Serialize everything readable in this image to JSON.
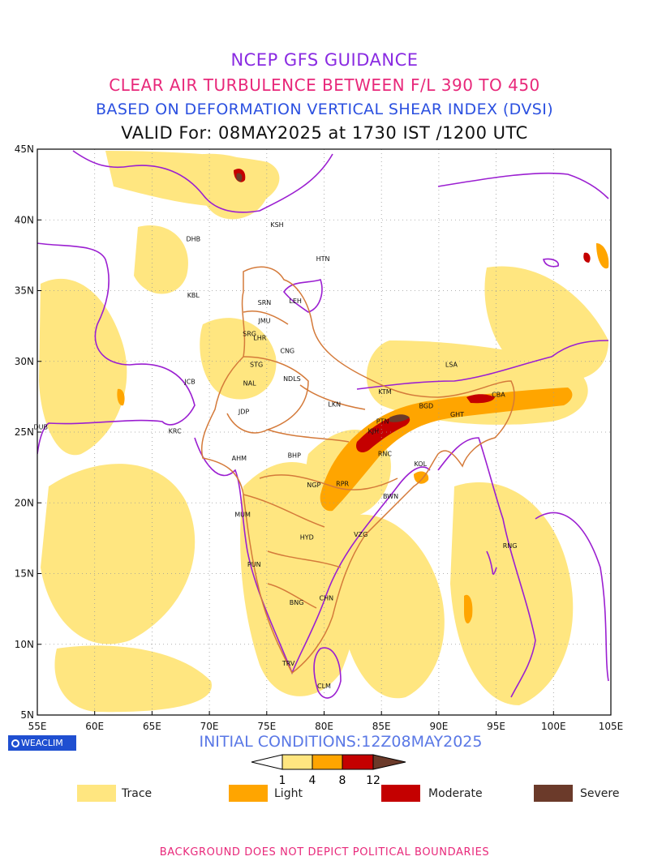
{
  "titles": {
    "line1": "NCEP GFS GUIDANCE",
    "line2": "CLEAR AIR TURBULENCE BETWEEN F/L 390 TO 450",
    "line3": "BASED ON DEFORMATION VERTICAL SHEAR INDEX (DVSI)",
    "line4": "VALID For: 08MAY2025 at 1730 IST /1200 UTC"
  },
  "axes": {
    "lon_labels": [
      "55E",
      "60E",
      "65E",
      "70E",
      "75E",
      "80E",
      "85E",
      "90E",
      "95E",
      "100E",
      "105E"
    ],
    "lat_labels": [
      "5N",
      "10N",
      "15N",
      "20N",
      "25N",
      "30N",
      "35N",
      "40N",
      "45N"
    ]
  },
  "stations": [
    {
      "code": "KSH",
      "lon": 75.9,
      "lat": 39.5
    },
    {
      "code": "DHB",
      "lon": 68.6,
      "lat": 38.5
    },
    {
      "code": "HTN",
      "lon": 79.9,
      "lat": 37.1
    },
    {
      "code": "KBL",
      "lon": 68.6,
      "lat": 34.5
    },
    {
      "code": "SRN",
      "lon": 74.8,
      "lat": 34.0
    },
    {
      "code": "LEH",
      "lon": 77.5,
      "lat": 34.1
    },
    {
      "code": "JMU",
      "lon": 74.8,
      "lat": 32.7
    },
    {
      "code": "SRG",
      "lon": 73.5,
      "lat": 31.8
    },
    {
      "code": "LHR",
      "lon": 74.4,
      "lat": 31.5
    },
    {
      "code": "CNG",
      "lon": 76.8,
      "lat": 30.6
    },
    {
      "code": "STG",
      "lon": 74.1,
      "lat": 29.6
    },
    {
      "code": "NDLS",
      "lon": 77.2,
      "lat": 28.6
    },
    {
      "code": "NAL",
      "lon": 73.5,
      "lat": 28.3
    },
    {
      "code": "LSA",
      "lon": 91.1,
      "lat": 29.6
    },
    {
      "code": "JCB",
      "lon": 68.3,
      "lat": 28.4
    },
    {
      "code": "KTM",
      "lon": 85.3,
      "lat": 27.7
    },
    {
      "code": "CBA",
      "lon": 95.2,
      "lat": 27.5
    },
    {
      "code": "BGD",
      "lon": 88.9,
      "lat": 26.7
    },
    {
      "code": "GHT",
      "lon": 91.6,
      "lat": 26.1
    },
    {
      "code": "LKN",
      "lon": 80.9,
      "lat": 26.8
    },
    {
      "code": "JDP",
      "lon": 73.0,
      "lat": 26.3
    },
    {
      "code": "PTN",
      "lon": 85.1,
      "lat": 25.6
    },
    {
      "code": "DUB",
      "lon": 55.3,
      "lat": 25.2
    },
    {
      "code": "KRC",
      "lon": 67.0,
      "lat": 24.9
    },
    {
      "code": "KJH",
      "lon": 84.3,
      "lat": 24.9
    },
    {
      "code": "RNC",
      "lon": 85.3,
      "lat": 23.3
    },
    {
      "code": "BHP",
      "lon": 77.4,
      "lat": 23.2
    },
    {
      "code": "AHM",
      "lon": 72.6,
      "lat": 23.0
    },
    {
      "code": "KOL",
      "lon": 88.4,
      "lat": 22.6
    },
    {
      "code": "NGP",
      "lon": 79.1,
      "lat": 21.1
    },
    {
      "code": "RPR",
      "lon": 81.6,
      "lat": 21.2
    },
    {
      "code": "BWN",
      "lon": 85.8,
      "lat": 20.3
    },
    {
      "code": "MUM",
      "lon": 72.9,
      "lat": 19.0
    },
    {
      "code": "HYD",
      "lon": 78.5,
      "lat": 17.4
    },
    {
      "code": "VZG",
      "lon": 83.2,
      "lat": 17.6
    },
    {
      "code": "RNG",
      "lon": 96.2,
      "lat": 16.8
    },
    {
      "code": "PUN",
      "lon": 73.9,
      "lat": 15.5
    },
    {
      "code": "CHN",
      "lon": 80.2,
      "lat": 13.1
    },
    {
      "code": "BNG",
      "lon": 77.6,
      "lat": 12.8
    },
    {
      "code": "TRV",
      "lon": 76.9,
      "lat": 8.5
    },
    {
      "code": "CLM",
      "lon": 80.0,
      "lat": 6.9
    }
  ],
  "initial_conditions": "INITIAL CONDITIONS:12Z08MAY2025",
  "logo_text": "WEACLIM",
  "colorbar": {
    "ticks": [
      "1",
      "4",
      "8",
      "12"
    ],
    "colors": [
      "#ffe680",
      "#ffa500",
      "#c40000",
      "#6b3a2a"
    ]
  },
  "legend": [
    {
      "label": "Trace",
      "color": "#ffe680"
    },
    {
      "label": "Light",
      "color": "#ffa500"
    },
    {
      "label": "Moderate",
      "color": "#c40000"
    },
    {
      "label": "Severe",
      "color": "#6b3a2a"
    }
  ],
  "footer": "BACKGROUND DOES NOT DEPICT POLITICAL BOUNDARIES"
}
